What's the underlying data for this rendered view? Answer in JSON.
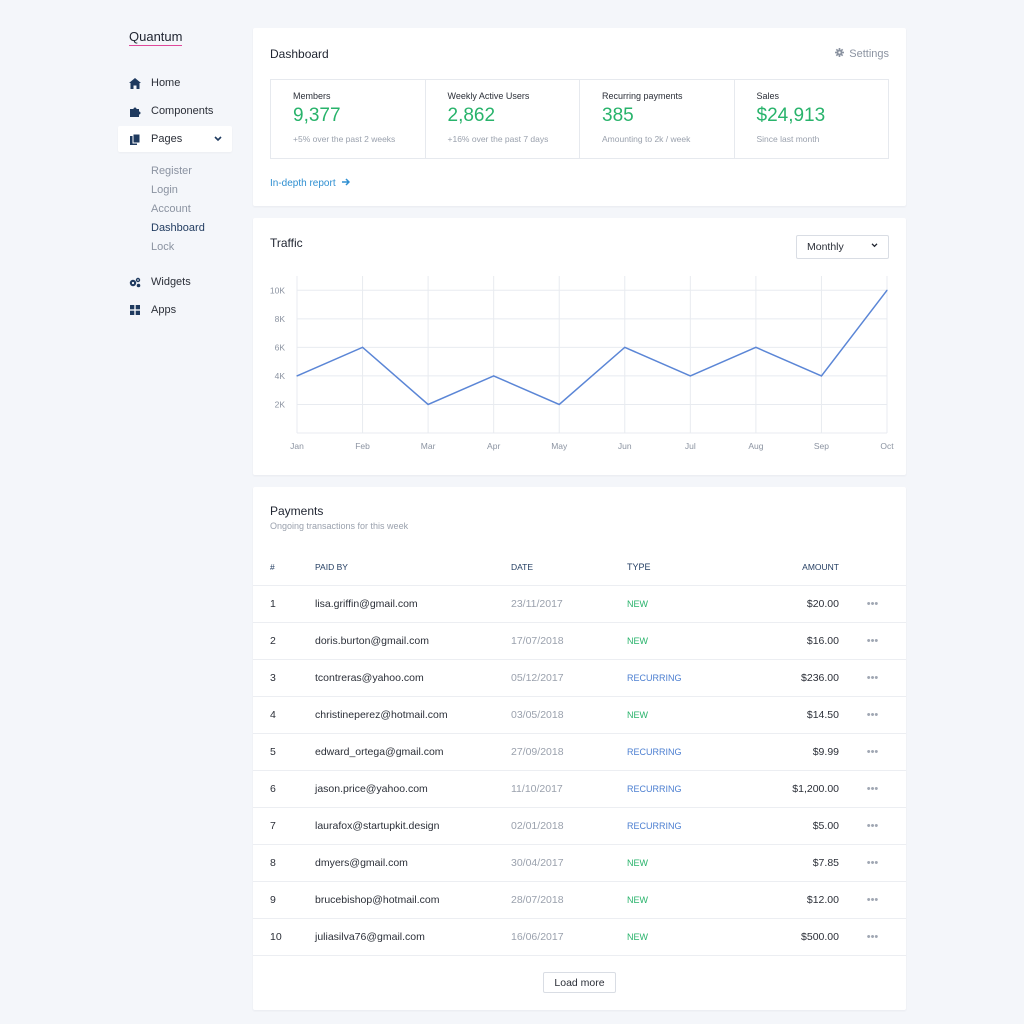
{
  "app": {
    "logo": "Quantum"
  },
  "sidebar": {
    "items": [
      {
        "label": "Home",
        "icon": "home-icon"
      },
      {
        "label": "Components",
        "icon": "puzzle-icon"
      },
      {
        "label": "Pages",
        "icon": "pages-icon"
      },
      {
        "label": "Widgets",
        "icon": "cogs-icon"
      },
      {
        "label": "Apps",
        "icon": "grid-icon"
      }
    ],
    "subitems": [
      "Register",
      "Login",
      "Account",
      "Dashboard",
      "Lock"
    ]
  },
  "dashboard": {
    "title": "Dashboard",
    "settings_label": "Settings",
    "stats": [
      {
        "label": "Members",
        "value": "9,377",
        "note": "+5%  over the past 2 weeks"
      },
      {
        "label": "Weekly Active Users",
        "value": "2,862",
        "note": "+16% over the past 7 days"
      },
      {
        "label": "Recurring payments",
        "value": "385",
        "note": "Amounting to 2k / week"
      },
      {
        "label": "Sales",
        "value": "$24,913",
        "note": "Since last month"
      }
    ],
    "report_link": "In-depth report"
  },
  "traffic": {
    "title": "Traffic",
    "period": "Monthly"
  },
  "chart_data": {
    "type": "line",
    "x": [
      "Jan",
      "Feb",
      "Mar",
      "Apr",
      "May",
      "Jun",
      "Jul",
      "Aug",
      "Sep",
      "Oct"
    ],
    "series": [
      {
        "values": [
          4000,
          6000,
          2000,
          4000,
          2000,
          6000,
          4000,
          6000,
          4000,
          10000
        ]
      }
    ],
    "yticks": [
      "2K",
      "4K",
      "6K",
      "8K",
      "10K"
    ],
    "ytick_values": [
      2000,
      4000,
      6000,
      8000,
      10000
    ],
    "ylim": [
      0,
      11000
    ],
    "grid": true,
    "color": "#5b86d6"
  },
  "payments": {
    "title": "Payments",
    "subtitle": "Ongoing transactions for this week",
    "columns": [
      "#",
      "PAID BY",
      "DATE",
      "TYPE",
      "AMOUNT"
    ],
    "rows": [
      {
        "num": "1",
        "paid_by": "lisa.griffin@gmail.com",
        "date": "23/11/2017",
        "type": "NEW",
        "amount": "$20.00"
      },
      {
        "num": "2",
        "paid_by": "doris.burton@gmail.com",
        "date": "17/07/2018",
        "type": "NEW",
        "amount": "$16.00"
      },
      {
        "num": "3",
        "paid_by": "tcontreras@yahoo.com",
        "date": "05/12/2017",
        "type": "RECURRING",
        "amount": "$236.00"
      },
      {
        "num": "4",
        "paid_by": "christineperez@hotmail.com",
        "date": "03/05/2018",
        "type": "NEW",
        "amount": "$14.50"
      },
      {
        "num": "5",
        "paid_by": "edward_ortega@gmail.com",
        "date": "27/09/2018",
        "type": "RECURRING",
        "amount": "$9.99"
      },
      {
        "num": "6",
        "paid_by": "jason.price@yahoo.com",
        "date": "11/10/2017",
        "type": "RECURRING",
        "amount": "$1,200.00"
      },
      {
        "num": "7",
        "paid_by": "laurafox@startupkit.design",
        "date": "02/01/2018",
        "type": "RECURRING",
        "amount": "$5.00"
      },
      {
        "num": "8",
        "paid_by": "dmyers@gmail.com",
        "date": "30/04/2017",
        "type": "NEW",
        "amount": "$7.85"
      },
      {
        "num": "9",
        "paid_by": "brucebishop@hotmail.com",
        "date": "28/07/2018",
        "type": "NEW",
        "amount": "$12.00"
      },
      {
        "num": "10",
        "paid_by": "juliasilva76@gmail.com",
        "date": "16/06/2017",
        "type": "NEW",
        "amount": "$500.00"
      }
    ],
    "load_more": "Load more"
  },
  "colors": {
    "accent_green": "#28b36b",
    "accent_blue": "#4c7fd1",
    "link": "#2f8fd1",
    "logo_underline": "#e0489a"
  }
}
